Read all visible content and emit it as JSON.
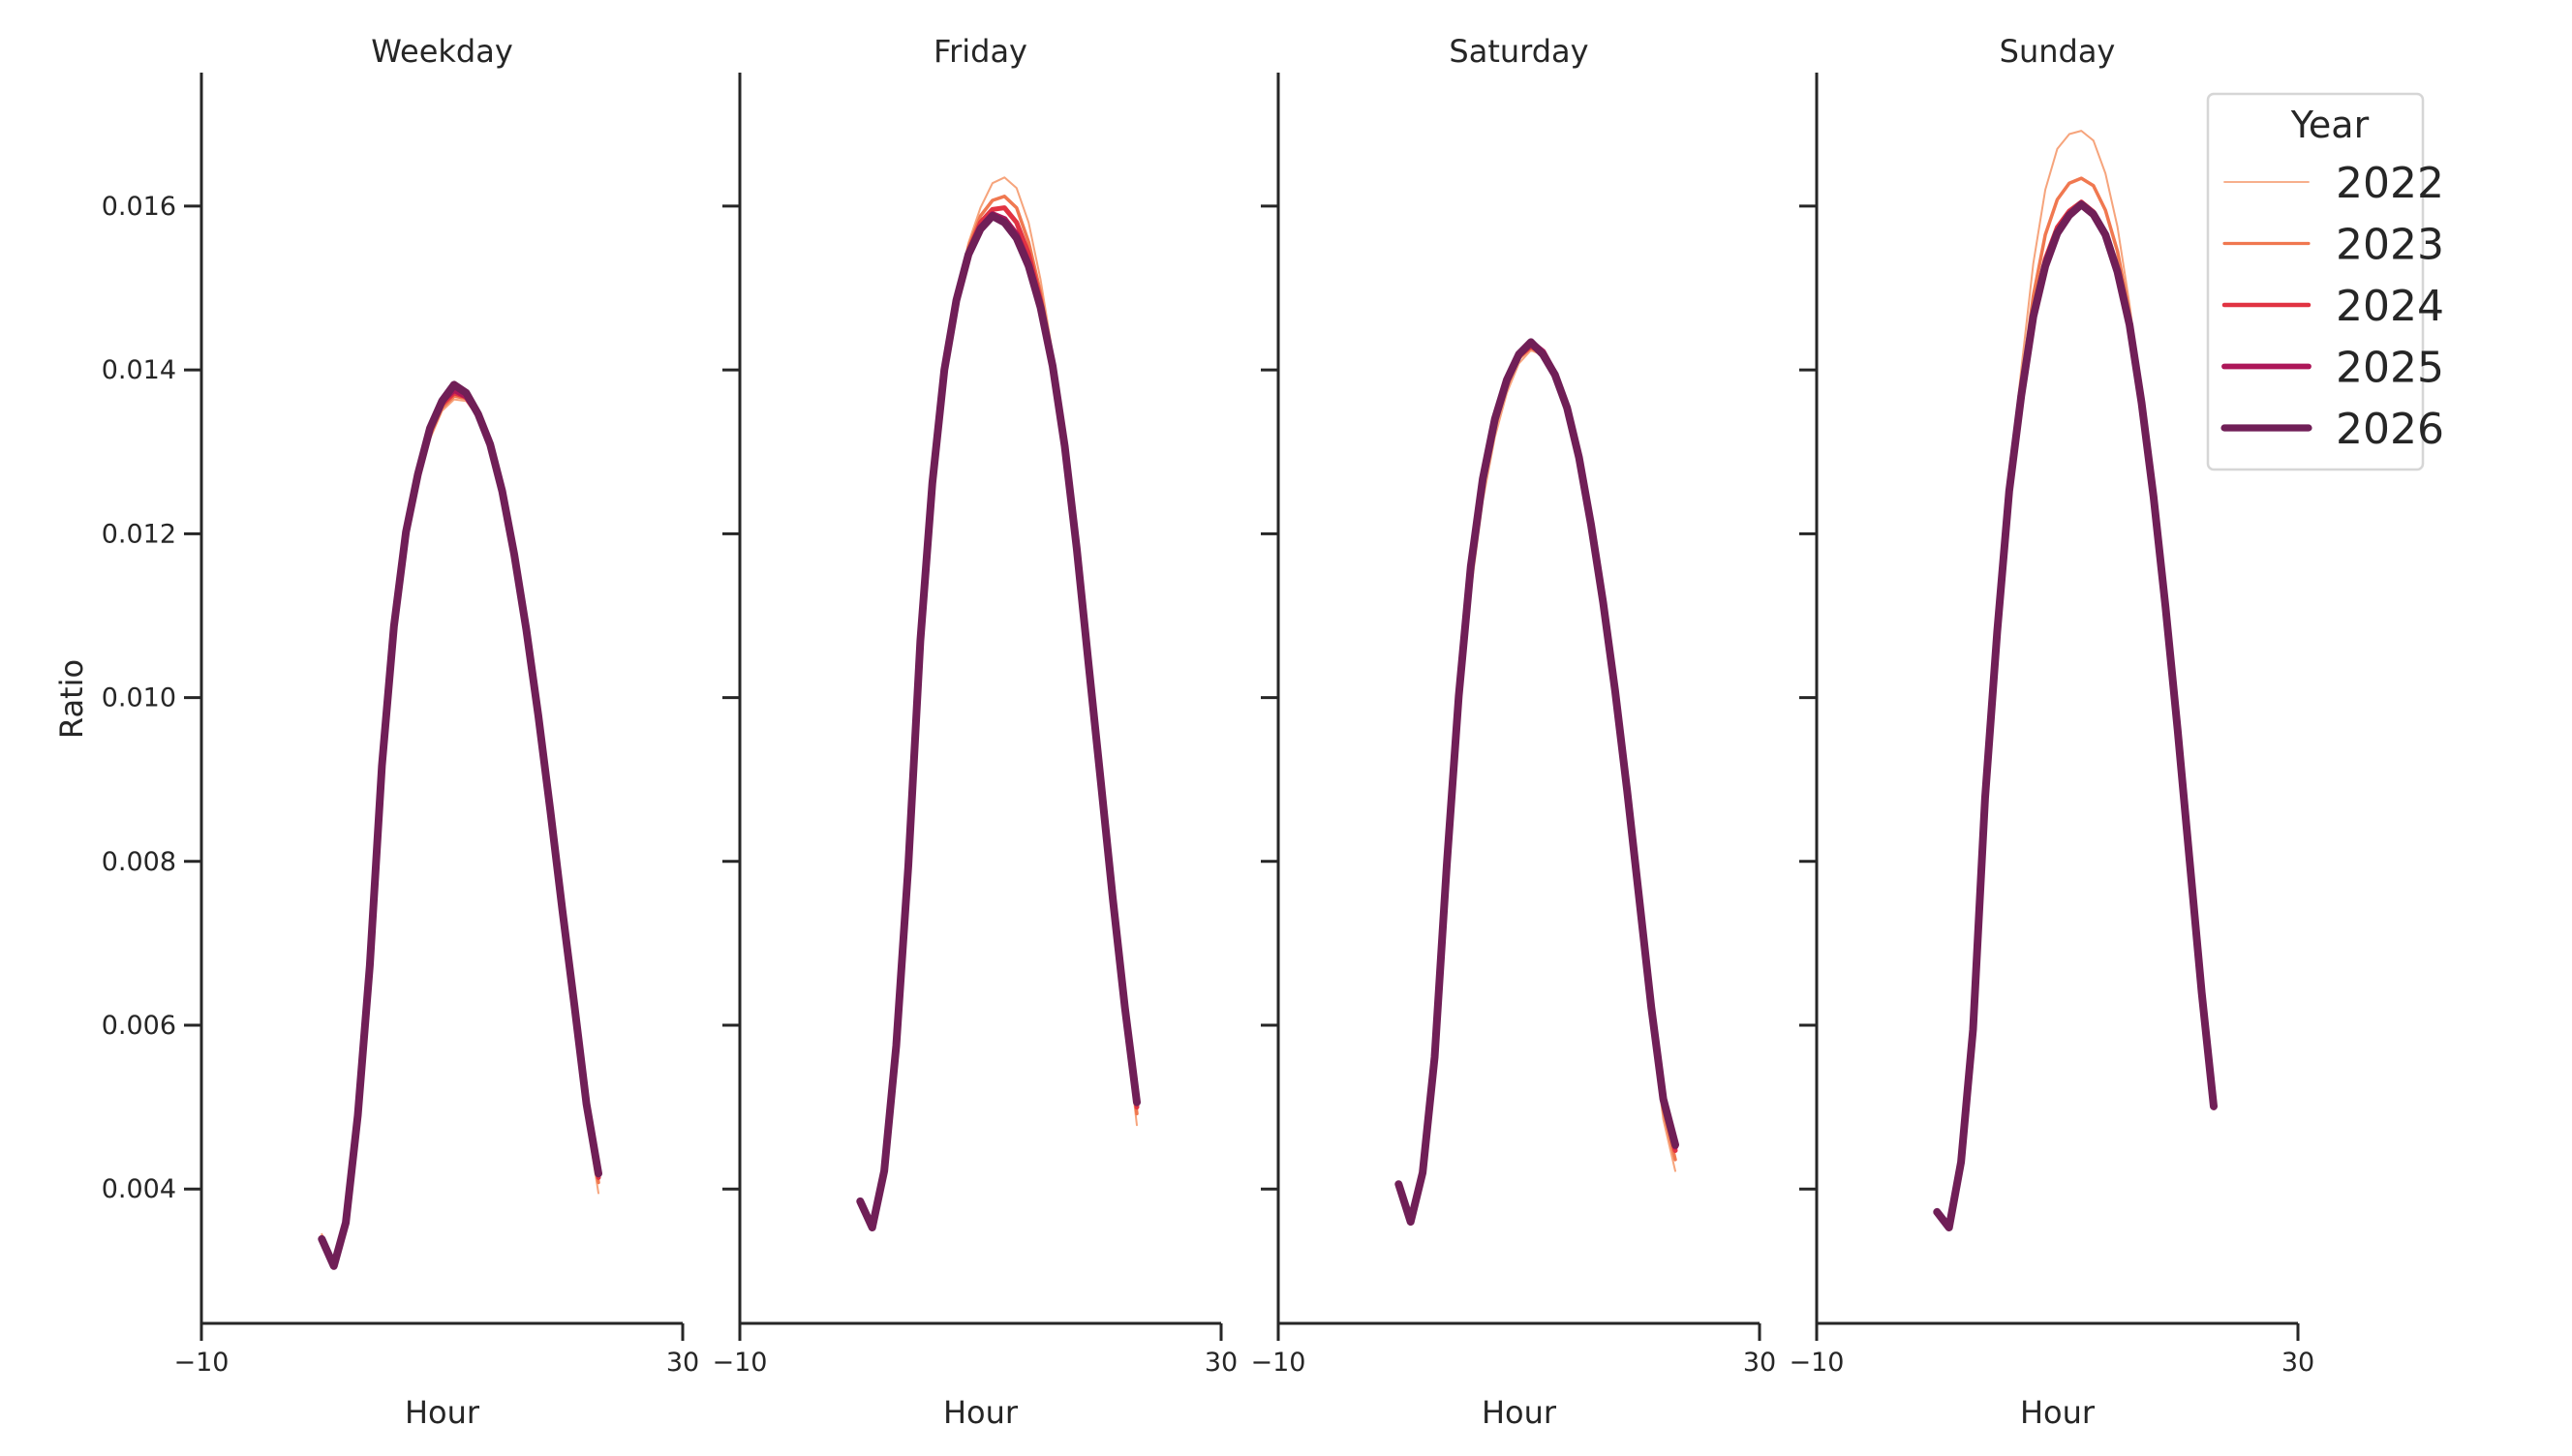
{
  "chart_data": {
    "type": "line",
    "layout": "facet-columns",
    "ylabel": "Ratio",
    "xlabel": "Hour",
    "xlim": [
      -10,
      30
    ],
    "xticks": [
      -10,
      30
    ],
    "xtick_labels": [
      "−10",
      "30"
    ],
    "ylim": [
      0.00236,
      0.01763
    ],
    "yticks": [
      0.004,
      0.006,
      0.008,
      0.01,
      0.012,
      0.014,
      0.016
    ],
    "ytick_labels": [
      "0.004",
      "0.006",
      "0.008",
      "0.010",
      "0.012",
      "0.014",
      "0.016"
    ],
    "grid": false,
    "shared_y": true,
    "legend": {
      "title": "Year",
      "position": "upper right (inside last panel)",
      "entries": [
        {
          "label": "2022",
          "color": "#f6a47c",
          "width": 2
        },
        {
          "label": "2023",
          "color": "#f07850",
          "width": 3.5
        },
        {
          "label": "2024",
          "color": "#e13342",
          "width": 5
        },
        {
          "label": "2025",
          "color": "#ad1759",
          "width": 6.5
        },
        {
          "label": "2026",
          "color": "#701f57",
          "width": 8
        }
      ]
    },
    "x": [
      0,
      1,
      2,
      3,
      4,
      5,
      6,
      7,
      8,
      9,
      10,
      11,
      12,
      13,
      14,
      15,
      16,
      17,
      18,
      19,
      20,
      21,
      22,
      23
    ],
    "panels": [
      {
        "title": "Weekday",
        "series": [
          {
            "name": "2022",
            "values": [
              0.00345,
              0.00308,
              0.00357,
              0.00488,
              0.0067,
              0.0091,
              0.01078,
              0.0119,
              0.0126,
              0.01316,
              0.0135,
              0.01364,
              0.01362,
              0.01342,
              0.01306,
              0.0125,
              0.01172,
              0.01078,
              0.0097,
              0.00852,
              0.00728,
              0.0061,
              0.00488,
              0.00395
            ]
          },
          {
            "name": "2023",
            "values": [
              0.00342,
              0.00307,
              0.00358,
              0.00489,
              0.00671,
              0.00913,
              0.01082,
              0.01195,
              0.01265,
              0.0132,
              0.01354,
              0.01368,
              0.01365,
              0.01344,
              0.01307,
              0.01251,
              0.01173,
              0.0108,
              0.00974,
              0.00857,
              0.00734,
              0.00617,
              0.00496,
              0.00408
            ]
          },
          {
            "name": "2024",
            "values": [
              0.0034,
              0.00306,
              0.00359,
              0.0049,
              0.00672,
              0.00915,
              0.01085,
              0.01199,
              0.01269,
              0.01325,
              0.01358,
              0.01372,
              0.01367,
              0.01345,
              0.01308,
              0.01252,
              0.01174,
              0.01082,
              0.00976,
              0.0086,
              0.00738,
              0.00621,
              0.00501,
              0.00414
            ]
          },
          {
            "name": "2025",
            "values": [
              0.00339,
              0.00306,
              0.00359,
              0.0049,
              0.00673,
              0.00917,
              0.01087,
              0.01202,
              0.01273,
              0.01329,
              0.01362,
              0.01376,
              0.01368,
              0.01346,
              0.01309,
              0.01252,
              0.01175,
              0.01083,
              0.00978,
              0.00862,
              0.0074,
              0.00624,
              0.00504,
              0.00418
            ]
          },
          {
            "name": "2026",
            "values": [
              0.00339,
              0.00306,
              0.00359,
              0.0049,
              0.00673,
              0.00917,
              0.01087,
              0.01202,
              0.01273,
              0.01329,
              0.01362,
              0.01382,
              0.01372,
              0.01346,
              0.01309,
              0.01252,
              0.01175,
              0.01083,
              0.00978,
              0.00862,
              0.0074,
              0.00624,
              0.00504,
              0.00419
            ]
          }
        ]
      },
      {
        "title": "Friday",
        "series": [
          {
            "name": "2022",
            "values": [
              0.00383,
              0.00352,
              0.0042,
              0.00574,
              0.00795,
              0.01069,
              0.01262,
              0.014,
              0.0149,
              0.01555,
              0.01598,
              0.01628,
              0.01635,
              0.01622,
              0.0158,
              0.0151,
              0.0142,
              0.0131,
              0.0118,
              0.01032,
              0.00886,
              0.0074,
              0.00605,
              0.00478
            ]
          },
          {
            "name": "2023",
            "values": [
              0.00384,
              0.00352,
              0.00421,
              0.00575,
              0.00795,
              0.01069,
              0.01262,
              0.014,
              0.01488,
              0.0155,
              0.01588,
              0.01607,
              0.01612,
              0.01598,
              0.01556,
              0.01494,
              0.01413,
              0.01309,
              0.01181,
              0.01036,
              0.00892,
              0.00748,
              0.00614,
              0.00492
            ]
          },
          {
            "name": "2024",
            "values": [
              0.00385,
              0.00353,
              0.00422,
              0.00575,
              0.00795,
              0.01069,
              0.01262,
              0.014,
              0.01486,
              0.01545,
              0.0158,
              0.01596,
              0.01598,
              0.0158,
              0.01542,
              0.01485,
              0.01409,
              0.01308,
              0.01182,
              0.01038,
              0.00895,
              0.00752,
              0.00619,
              0.005
            ]
          },
          {
            "name": "2025",
            "values": [
              0.00385,
              0.00353,
              0.00422,
              0.00575,
              0.00795,
              0.01069,
              0.01262,
              0.014,
              0.01485,
              0.01542,
              0.01574,
              0.0159,
              0.01584,
              0.01565,
              0.0153,
              0.01478,
              0.01406,
              0.01307,
              0.01182,
              0.01039,
              0.00897,
              0.00754,
              0.00622,
              0.00505
            ]
          },
          {
            "name": "2026",
            "values": [
              0.00385,
              0.00353,
              0.00422,
              0.00575,
              0.00795,
              0.01069,
              0.01262,
              0.014,
              0.01485,
              0.01541,
              0.01572,
              0.01588,
              0.0158,
              0.01561,
              0.01527,
              0.01476,
              0.01405,
              0.01307,
              0.01182,
              0.01039,
              0.00897,
              0.00754,
              0.00622,
              0.00506
            ]
          }
        ]
      },
      {
        "title": "Saturday",
        "series": [
          {
            "name": "2022",
            "values": [
              0.004,
              0.00358,
              0.00418,
              0.00552,
              0.00772,
              0.00975,
              0.0113,
              0.0124,
              0.01318,
              0.01372,
              0.01408,
              0.01424,
              0.01418,
              0.01392,
              0.01352,
              0.0129,
              0.01206,
              0.01108,
              0.00996,
              0.0087,
              0.00735,
              0.006,
              0.00485,
              0.00422
            ]
          },
          {
            "name": "2023",
            "values": [
              0.00403,
              0.00359,
              0.00419,
              0.00556,
              0.00782,
              0.00988,
              0.01145,
              0.01254,
              0.0133,
              0.0138,
              0.01414,
              0.01427,
              0.01419,
              0.01393,
              0.01353,
              0.01291,
              0.01208,
              0.01111,
              0.01001,
              0.00877,
              0.00744,
              0.0061,
              0.00496,
              0.00436
            ]
          },
          {
            "name": "2024",
            "values": [
              0.00405,
              0.0036,
              0.0042,
              0.00559,
              0.0079,
              0.00997,
              0.01155,
              0.01263,
              0.01337,
              0.01385,
              0.01417,
              0.01429,
              0.0142,
              0.01394,
              0.01354,
              0.01293,
              0.0121,
              0.01114,
              0.01005,
              0.00882,
              0.0075,
              0.00617,
              0.00505,
              0.00447
            ]
          },
          {
            "name": "2025",
            "values": [
              0.00406,
              0.0036,
              0.0042,
              0.00561,
              0.00795,
              0.01002,
              0.0116,
              0.01267,
              0.0134,
              0.01388,
              0.0142,
              0.01434,
              0.01422,
              0.01395,
              0.01354,
              0.01293,
              0.01211,
              0.01116,
              0.01008,
              0.00886,
              0.00754,
              0.00622,
              0.0051,
              0.00452
            ]
          },
          {
            "name": "2026",
            "values": [
              0.00406,
              0.0036,
              0.0042,
              0.00561,
              0.00795,
              0.01002,
              0.0116,
              0.01267,
              0.0134,
              0.01388,
              0.01419,
              0.01434,
              0.01419,
              0.01394,
              0.01354,
              0.01293,
              0.01211,
              0.01116,
              0.01008,
              0.00886,
              0.00754,
              0.00622,
              0.0051,
              0.00454
            ]
          }
        ]
      },
      {
        "title": "Sunday",
        "series": [
          {
            "name": "2022",
            "values": [
              0.00368,
              0.0035,
              0.0043,
              0.00592,
              0.00875,
              0.0108,
              0.01262,
              0.014,
              0.0153,
              0.0162,
              0.0167,
              0.01688,
              0.01692,
              0.0168,
              0.0164,
              0.01575,
              0.0148,
              0.0137,
              0.0124,
              0.011,
              0.00955,
              0.008,
              0.0064,
              0.00498
            ]
          },
          {
            "name": "2023",
            "values": [
              0.0037,
              0.00351,
              0.00431,
              0.00593,
              0.00876,
              0.0108,
              0.01255,
              0.0138,
              0.0149,
              0.01565,
              0.01608,
              0.01628,
              0.01634,
              0.01625,
              0.01595,
              0.01545,
              0.01468,
              0.01366,
              0.01243,
              0.01106,
              0.0096,
              0.00802,
              0.00642,
              0.005
            ]
          },
          {
            "name": "2024",
            "values": [
              0.00371,
              0.00352,
              0.00432,
              0.00594,
              0.00877,
              0.0108,
              0.01252,
              0.0137,
              0.0147,
              0.01535,
              0.01574,
              0.01594,
              0.01605,
              0.01593,
              0.01568,
              0.01523,
              0.01457,
              0.01362,
              0.01245,
              0.0111,
              0.0096,
              0.00801,
              0.00641,
              0.00503
            ]
          },
          {
            "name": "2025",
            "values": [
              0.00372,
              0.00353,
              0.00433,
              0.00595,
              0.00877,
              0.0108,
              0.01252,
              0.01368,
              0.01466,
              0.01528,
              0.01568,
              0.0159,
              0.01603,
              0.01591,
              0.01566,
              0.01521,
              0.01456,
              0.01361,
              0.01245,
              0.0111,
              0.0096,
              0.008,
              0.0064,
              0.005
            ]
          },
          {
            "name": "2026",
            "values": [
              0.00372,
              0.00353,
              0.00433,
              0.00595,
              0.00877,
              0.0108,
              0.01252,
              0.01368,
              0.01465,
              0.01527,
              0.01567,
              0.01589,
              0.01602,
              0.0159,
              0.01565,
              0.0152,
              0.01455,
              0.0136,
              0.01245,
              0.0111,
              0.0096,
              0.008,
              0.0064,
              0.00501
            ]
          }
        ]
      }
    ]
  },
  "figure": {
    "ylabel": "Ratio",
    "panel_titles": [
      "Weekday",
      "Friday",
      "Saturday",
      "Sunday"
    ],
    "xlabel": "Hour",
    "legend_title": "Year"
  }
}
